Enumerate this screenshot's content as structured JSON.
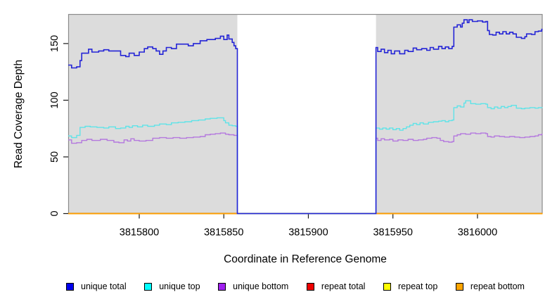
{
  "axes": {
    "x_label": "Coordinate in Reference Genome",
    "y_label": "Read Coverage Depth",
    "x_tick_labels": [
      "3815800",
      "3815850",
      "3815900",
      "3815950",
      "3816000"
    ],
    "y_tick_labels": [
      "0",
      "50",
      "100",
      "150"
    ]
  },
  "legend": {
    "items": [
      {
        "label": "unique total",
        "color": "#0000ee"
      },
      {
        "label": "unique top",
        "color": "#00ffff"
      },
      {
        "label": "unique bottom",
        "color": "#a020f0"
      },
      {
        "label": "repeat total",
        "color": "#ee0000"
      },
      {
        "label": "repeat top",
        "color": "#ffff00"
      },
      {
        "label": "repeat bottom",
        "color": "#ffa500"
      }
    ]
  },
  "colors": {
    "panel_bg": "#dcdcdc",
    "frame": "#8a8a8a",
    "tick": "#1a1a1a",
    "text": "#000000"
  },
  "chart_data": {
    "type": "line",
    "step": true,
    "title": "",
    "xlabel": "Coordinate in Reference Genome",
    "ylabel": "Read Coverage Depth",
    "xlim": [
      3815758,
      3816038.5
    ],
    "ylim": [
      0,
      176
    ],
    "x_ticks": [
      3815800,
      3815850,
      3815900,
      3815950,
      3816000
    ],
    "y_ticks": [
      0,
      50,
      100,
      150
    ],
    "grid": false,
    "legend_position": "bottom",
    "shaded_regions": [
      {
        "x0": 3815758,
        "x1": 3815858,
        "color": "#dcdcdc"
      },
      {
        "x0": 3815940,
        "x1": 3816038.5,
        "color": "#dcdcdc"
      }
    ],
    "gap_region": {
      "x0": 3815858,
      "x1": 3815940,
      "note": "coverage drops to 0, white background"
    },
    "x_end": 3816038.5,
    "series": [
      {
        "name": "repeat total",
        "color": "#de0000",
        "lw": 1.4,
        "points": [
          [
            3815758,
            0
          ]
        ]
      },
      {
        "name": "repeat top",
        "color": "#ffff00",
        "lw": 1.4,
        "points": [
          [
            3815758,
            0
          ]
        ]
      },
      {
        "name": "repeat bottom",
        "color": "#ff9d00",
        "lw": 1.8,
        "points": [
          [
            3815758,
            0
          ]
        ]
      },
      {
        "name": "unique bottom",
        "color": "#b478de",
        "lw": 1.4,
        "points": [
          [
            3815758,
            65
          ],
          [
            3815760,
            62
          ],
          [
            3815763,
            62.5
          ],
          [
            3815766,
            64.5
          ],
          [
            3815769,
            65.5
          ],
          [
            3815772,
            64.5
          ],
          [
            3815777,
            65.5
          ],
          [
            3815781,
            64.5
          ],
          [
            3815785,
            63
          ],
          [
            3815788,
            62.5
          ],
          [
            3815791,
            65
          ],
          [
            3815793,
            64
          ],
          [
            3815795,
            66
          ],
          [
            3815797,
            64.5
          ],
          [
            3815800,
            64
          ],
          [
            3815804,
            64.5
          ],
          [
            3815808,
            66.5
          ],
          [
            3815812,
            67
          ],
          [
            3815816,
            66.5
          ],
          [
            3815820,
            67
          ],
          [
            3815824,
            66.5
          ],
          [
            3815828,
            67
          ],
          [
            3815832,
            67.5
          ],
          [
            3815836,
            68
          ],
          [
            3815839,
            69.5
          ],
          [
            3815842,
            70
          ],
          [
            3815845,
            70.5
          ],
          [
            3815848,
            71
          ],
          [
            3815851,
            70
          ],
          [
            3815853,
            69.5
          ],
          [
            3815856,
            69
          ],
          [
            3815858,
            0
          ],
          [
            3815940,
            66.5
          ],
          [
            3815941,
            64.5
          ],
          [
            3815943,
            66
          ],
          [
            3815945,
            65
          ],
          [
            3815948,
            65.5
          ],
          [
            3815950,
            64
          ],
          [
            3815953,
            65
          ],
          [
            3815956,
            64.5
          ],
          [
            3815959,
            65.5
          ],
          [
            3815962,
            64.5
          ],
          [
            3815965,
            65
          ],
          [
            3815968,
            65.5
          ],
          [
            3815970,
            66.5
          ],
          [
            3815973,
            67
          ],
          [
            3815976,
            66.5
          ],
          [
            3815978,
            64.5
          ],
          [
            3815980,
            63.5
          ],
          [
            3815983,
            63
          ],
          [
            3815985,
            63.5
          ],
          [
            3815986,
            68.5
          ],
          [
            3815988,
            69.5
          ],
          [
            3815990,
            70.5
          ],
          [
            3815993,
            70
          ],
          [
            3815996,
            71
          ],
          [
            3815999,
            70.5
          ],
          [
            3816002,
            71
          ],
          [
            3816005,
            70.5
          ],
          [
            3816006,
            68
          ],
          [
            3816008,
            67.5
          ],
          [
            3816010,
            68.5
          ],
          [
            3816013,
            68
          ],
          [
            3816016,
            67.5
          ],
          [
            3816019,
            68
          ],
          [
            3816022,
            67.5
          ],
          [
            3816025,
            67
          ],
          [
            3816028,
            67.5
          ],
          [
            3816031,
            68
          ],
          [
            3816034,
            68.5
          ],
          [
            3816036,
            69.5
          ],
          [
            3816038,
            70
          ]
        ]
      },
      {
        "name": "unique top",
        "color": "#5fe3e8",
        "lw": 1.4,
        "points": [
          [
            3815758,
            68.5
          ],
          [
            3815760,
            67
          ],
          [
            3815763,
            69
          ],
          [
            3815765,
            76
          ],
          [
            3815768,
            77
          ],
          [
            3815771,
            76.5
          ],
          [
            3815775,
            76
          ],
          [
            3815779,
            75.5
          ],
          [
            3815782,
            76.5
          ],
          [
            3815786,
            75
          ],
          [
            3815789,
            75.5
          ],
          [
            3815792,
            77
          ],
          [
            3815794,
            76
          ],
          [
            3815796,
            77.5
          ],
          [
            3815799,
            76.5
          ],
          [
            3815802,
            78
          ],
          [
            3815805,
            77
          ],
          [
            3815809,
            78
          ],
          [
            3815812,
            79
          ],
          [
            3815816,
            78.5
          ],
          [
            3815819,
            80
          ],
          [
            3815823,
            80.5
          ],
          [
            3815827,
            81
          ],
          [
            3815831,
            82
          ],
          [
            3815835,
            82.5
          ],
          [
            3815839,
            83.5
          ],
          [
            3815842,
            84
          ],
          [
            3815846,
            84.5
          ],
          [
            3815850,
            82
          ],
          [
            3815851,
            80
          ],
          [
            3815853,
            78
          ],
          [
            3815855,
            77.5
          ],
          [
            3815857,
            77
          ],
          [
            3815858,
            0
          ],
          [
            3815940,
            75.5
          ],
          [
            3815942,
            74.5
          ],
          [
            3815944,
            75.5
          ],
          [
            3815946,
            74.5
          ],
          [
            3815948,
            75.5
          ],
          [
            3815950,
            74
          ],
          [
            3815952,
            75
          ],
          [
            3815954,
            73.5
          ],
          [
            3815956,
            75
          ],
          [
            3815958,
            76.5
          ],
          [
            3815960,
            78
          ],
          [
            3815962,
            79.5
          ],
          [
            3815964,
            78.5
          ],
          [
            3815966,
            80
          ],
          [
            3815968,
            79
          ],
          [
            3815971,
            80.5
          ],
          [
            3815974,
            81
          ],
          [
            3815977,
            81.5
          ],
          [
            3815979,
            82
          ],
          [
            3815981,
            81
          ],
          [
            3815983,
            82
          ],
          [
            3815985,
            82.5
          ],
          [
            3815986,
            93.5
          ],
          [
            3815988,
            95
          ],
          [
            3815990,
            94
          ],
          [
            3815992,
            97.5
          ],
          [
            3815993,
            99.5
          ],
          [
            3815996,
            97
          ],
          [
            3815999,
            96.5
          ],
          [
            3816002,
            97
          ],
          [
            3816005,
            96.5
          ],
          [
            3816006,
            93.5
          ],
          [
            3816008,
            92.5
          ],
          [
            3816010,
            94
          ],
          [
            3816012,
            93
          ],
          [
            3816014,
            94.5
          ],
          [
            3816016,
            93.5
          ],
          [
            3816018,
            94.5
          ],
          [
            3816020,
            95.5
          ],
          [
            3816023,
            93
          ],
          [
            3816026,
            92.5
          ],
          [
            3816028,
            93
          ],
          [
            3816031,
            93.5
          ],
          [
            3816034,
            93
          ],
          [
            3816036,
            93.5
          ],
          [
            3816038,
            93.5
          ]
        ]
      },
      {
        "name": "unique total",
        "color": "#2424d6",
        "lw": 1.6,
        "points": [
          [
            3815758,
            131
          ],
          [
            3815760,
            128.5
          ],
          [
            3815763,
            129.5
          ],
          [
            3815765,
            135
          ],
          [
            3815766,
            141.5
          ],
          [
            3815770,
            145
          ],
          [
            3815772,
            142.5
          ],
          [
            3815776,
            143.5
          ],
          [
            3815779,
            144.5
          ],
          [
            3815782,
            143.5
          ],
          [
            3815789,
            139.5
          ],
          [
            3815792,
            138.5
          ],
          [
            3815794,
            141.5
          ],
          [
            3815797,
            139.5
          ],
          [
            3815800,
            142.5
          ],
          [
            3815803,
            145.5
          ],
          [
            3815805,
            147
          ],
          [
            3815808,
            145.5
          ],
          [
            3815810,
            143.5
          ],
          [
            3815812,
            140.5
          ],
          [
            3815814,
            143.5
          ],
          [
            3815816,
            146.5
          ],
          [
            3815819,
            145.5
          ],
          [
            3815822,
            149.5
          ],
          [
            3815829,
            148
          ],
          [
            3815832,
            150
          ],
          [
            3815836,
            152.5
          ],
          [
            3815840,
            153.5
          ],
          [
            3815845,
            154.5
          ],
          [
            3815848,
            156.5
          ],
          [
            3815850,
            153.5
          ],
          [
            3815852,
            157.5
          ],
          [
            3815853,
            154
          ],
          [
            3815855,
            151
          ],
          [
            3815856,
            148
          ],
          [
            3815857,
            145.5
          ],
          [
            3815858,
            0
          ],
          [
            3815940,
            146.5
          ],
          [
            3815941,
            143
          ],
          [
            3815943,
            145
          ],
          [
            3815945,
            142
          ],
          [
            3815947,
            144
          ],
          [
            3815949,
            141
          ],
          [
            3815951,
            143.5
          ],
          [
            3815954,
            141
          ],
          [
            3815957,
            144
          ],
          [
            3815959,
            143
          ],
          [
            3815962,
            146
          ],
          [
            3815964,
            144.5
          ],
          [
            3815967,
            145.5
          ],
          [
            3815970,
            144
          ],
          [
            3815972,
            146.5
          ],
          [
            3815974,
            145
          ],
          [
            3815977,
            147.5
          ],
          [
            3815979,
            145.5
          ],
          [
            3815981,
            147
          ],
          [
            3815983,
            145.5
          ],
          [
            3815985,
            147.5
          ],
          [
            3815986,
            164.5
          ],
          [
            3815988,
            166.5
          ],
          [
            3815990,
            164.5
          ],
          [
            3815991,
            168
          ],
          [
            3815992,
            171
          ],
          [
            3815994,
            168.5
          ],
          [
            3815995,
            171
          ],
          [
            3815997,
            169.5
          ],
          [
            3816000,
            170
          ],
          [
            3816003,
            169
          ],
          [
            3816005,
            169.5
          ],
          [
            3816006,
            161.5
          ],
          [
            3816007,
            158
          ],
          [
            3816009,
            157.5
          ],
          [
            3816011,
            160
          ],
          [
            3816013,
            158.5
          ],
          [
            3816015,
            160.5
          ],
          [
            3816017,
            158.5
          ],
          [
            3816019,
            160
          ],
          [
            3816021,
            158.5
          ],
          [
            3816023,
            155.5
          ],
          [
            3816026,
            154.5
          ],
          [
            3816028,
            156
          ],
          [
            3816029,
            158.5
          ],
          [
            3816032,
            158
          ],
          [
            3816034,
            160.5
          ],
          [
            3816036,
            161
          ],
          [
            3816038,
            162.5
          ]
        ]
      }
    ]
  }
}
